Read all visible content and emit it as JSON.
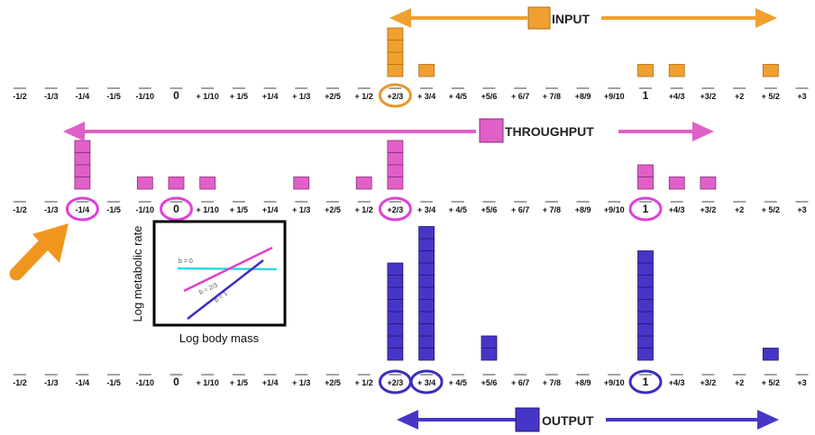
{
  "scale_labels": [
    "-1/2",
    "-1/3",
    "-1/4",
    "-1/5",
    "-1/10",
    "0",
    "+ 1/10",
    "+ 1/5",
    "+1/4",
    "+ 1/3",
    "+2/5",
    "+ 1/2",
    "+2/3",
    "+ 3/4",
    "+ 4/5",
    "+5/6",
    "+ 6/7",
    "+ 7/8",
    "+8/9",
    "+9/10",
    "1",
    "+4/3",
    "+3/2",
    "+2",
    "+ 5/2",
    "+3"
  ],
  "bold_labels": [
    "0",
    "1"
  ],
  "colors": {
    "input": "#f0a030",
    "input_border": "#b06d10",
    "throughput": "#e060c8",
    "throughput_border": "#8a2a78",
    "output": "#4636c8",
    "output_border": "#22186e",
    "circle_input": "#e8962a",
    "circle_throughput": "#e040d8",
    "circle_output": "#3a2ec0",
    "pointer_arrow": "#f0961e",
    "inset_cyan": "#30d8e0",
    "inset_magenta": "#e040c8",
    "inset_blue": "#3a2ec8"
  },
  "panels": [
    {
      "id": "input",
      "title": "INPUT",
      "arrow_style": "double-headed",
      "circled_labels": [
        "+2/3"
      ],
      "counts": {
        "+2/3": 4,
        "+ 3/4": 1,
        "1": 1,
        "+4/3": 1,
        "+ 5/2": 1
      }
    },
    {
      "id": "throughput",
      "title": "THROUGHPUT",
      "arrow_style": "double-headed",
      "circled_labels": [
        "-1/4",
        "0",
        "+2/3",
        "1"
      ],
      "counts": {
        "-1/4": 4,
        "-1/10": 1,
        "0": 1,
        "+ 1/10": 1,
        "+ 1/3": 1,
        "+ 1/2": 1,
        "+2/3": 4,
        "1": 2,
        "+4/3": 1,
        "+3/2": 1
      }
    },
    {
      "id": "output",
      "title": "OUTPUT",
      "arrow_style": "double-headed",
      "circled_labels": [
        "+2/3",
        "+ 3/4",
        "1"
      ],
      "counts": {
        "+2/3": 8,
        "+ 3/4": 11,
        "+5/6": 2,
        "1": 9,
        "+ 5/2": 1
      }
    }
  ],
  "inset": {
    "xlabel": "Log body mass",
    "ylabel": "Log metabolic rate",
    "line_labels": [
      "b = 0",
      "b = 2/3",
      "b = 1"
    ]
  }
}
